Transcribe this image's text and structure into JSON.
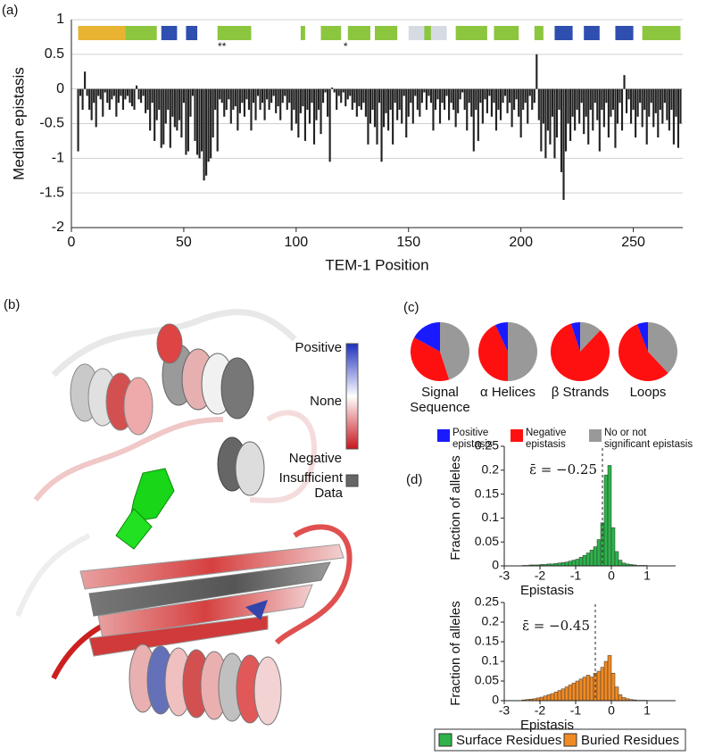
{
  "panels": [
    "(a)",
    "(b)",
    "(c)",
    "(d)"
  ],
  "structure_panel": {
    "colorbar_labels": [
      "Positive",
      "None",
      "Negative"
    ],
    "missing_label": "Insufficient Data"
  },
  "chart_data": [
    {
      "type": "bar",
      "ylabel": "Median epistasis",
      "xlabel": "TEM-1 Position",
      "color": "#222222",
      "grid": true,
      "xlim": [
        0,
        272
      ],
      "ylim": [
        -2,
        1
      ],
      "xticks": [
        0,
        50,
        100,
        150,
        200,
        250
      ],
      "yticks": [
        -2,
        -1.5,
        -1,
        -0.5,
        0,
        0.5,
        1
      ],
      "segments": [
        {
          "start": 3,
          "end": 24,
          "color": "#e8b330"
        },
        {
          "start": 24,
          "end": 38,
          "color": "#8cc63f"
        },
        {
          "start": 40,
          "end": 47,
          "color": "#2e4fb0"
        },
        {
          "start": 51,
          "end": 56,
          "color": "#2e4fb0"
        },
        {
          "start": 65,
          "end": 80,
          "color": "#8cc63f"
        },
        {
          "start": 102,
          "end": 104,
          "color": "#8cc63f"
        },
        {
          "start": 111,
          "end": 120,
          "color": "#8cc63f"
        },
        {
          "start": 123,
          "end": 133,
          "color": "#8cc63f"
        },
        {
          "start": 135,
          "end": 145,
          "color": "#8cc63f"
        },
        {
          "start": 150,
          "end": 158,
          "color": "#d6dbe2"
        },
        {
          "start": 157,
          "end": 160,
          "color": "#8cc63f"
        },
        {
          "start": 160,
          "end": 167,
          "color": "#d6dbe2"
        },
        {
          "start": 171,
          "end": 185,
          "color": "#8cc63f"
        },
        {
          "start": 188,
          "end": 199,
          "color": "#8cc63f"
        },
        {
          "start": 206,
          "end": 210,
          "color": "#8cc63f"
        },
        {
          "start": 215,
          "end": 223,
          "color": "#2e4fb0"
        },
        {
          "start": 228,
          "end": 235,
          "color": "#2e4fb0"
        },
        {
          "start": 242,
          "end": 250,
          "color": "#2e4fb0"
        },
        {
          "start": 254,
          "end": 271,
          "color": "#8cc63f"
        }
      ],
      "stars": [
        {
          "label": "**",
          "x": 67
        },
        {
          "label": "*",
          "x": 122
        }
      ],
      "x": [
        3,
        4,
        5,
        6,
        7,
        8,
        9,
        10,
        11,
        12,
        13,
        14,
        15,
        16,
        17,
        18,
        19,
        20,
        21,
        22,
        23,
        24,
        25,
        26,
        27,
        28,
        29,
        30,
        31,
        32,
        33,
        34,
        35,
        36,
        37,
        38,
        39,
        40,
        41,
        42,
        43,
        44,
        45,
        46,
        47,
        48,
        49,
        50,
        51,
        52,
        53,
        54,
        55,
        56,
        57,
        58,
        59,
        60,
        61,
        62,
        63,
        64,
        65,
        66,
        67,
        68,
        69,
        70,
        71,
        72,
        73,
        74,
        75,
        76,
        77,
        78,
        79,
        80,
        81,
        82,
        83,
        84,
        85,
        86,
        87,
        88,
        89,
        90,
        91,
        92,
        93,
        94,
        95,
        96,
        97,
        98,
        99,
        100,
        101,
        102,
        103,
        104,
        105,
        106,
        107,
        108,
        109,
        110,
        111,
        112,
        113,
        114,
        115,
        116,
        117,
        118,
        119,
        120,
        121,
        122,
        123,
        124,
        125,
        126,
        127,
        128,
        129,
        130,
        131,
        132,
        133,
        134,
        135,
        136,
        137,
        138,
        139,
        140,
        141,
        142,
        143,
        144,
        145,
        146,
        147,
        148,
        149,
        150,
        151,
        152,
        153,
        154,
        155,
        156,
        157,
        158,
        159,
        160,
        161,
        162,
        163,
        164,
        165,
        166,
        167,
        168,
        169,
        170,
        171,
        172,
        173,
        174,
        175,
        176,
        177,
        178,
        179,
        180,
        181,
        182,
        183,
        184,
        185,
        186,
        187,
        188,
        189,
        190,
        191,
        192,
        193,
        194,
        195,
        196,
        197,
        198,
        199,
        200,
        201,
        202,
        203,
        204,
        205,
        206,
        207,
        208,
        209,
        210,
        211,
        212,
        213,
        214,
        215,
        216,
        217,
        218,
        219,
        220,
        221,
        222,
        223,
        224,
        225,
        226,
        227,
        228,
        229,
        230,
        231,
        232,
        233,
        234,
        235,
        236,
        237,
        238,
        239,
        240,
        241,
        242,
        243,
        244,
        245,
        246,
        247,
        248,
        249,
        250,
        251,
        252,
        253,
        254,
        255,
        256,
        257,
        258,
        259,
        260,
        261,
        262,
        263,
        264,
        265,
        266,
        267,
        268,
        269,
        270,
        271
      ],
      "values": [
        -0.9,
        -0.1,
        -0.3,
        0.25,
        -0.1,
        -0.3,
        -0.45,
        -0.2,
        -0.55,
        -0.1,
        -0.15,
        -0.4,
        -0.05,
        -0.2,
        -0.3,
        -0.15,
        -0.1,
        -0.4,
        -0.2,
        -0.1,
        -0.3,
        -0.15,
        -0.1,
        -0.2,
        -0.25,
        -0.3,
        0.05,
        -0.15,
        -0.2,
        -0.1,
        -0.35,
        -0.3,
        -0.6,
        -0.2,
        -0.75,
        -0.45,
        -0.3,
        -0.85,
        -0.8,
        -0.5,
        -0.3,
        -0.85,
        -0.4,
        -0.55,
        -0.6,
        -0.45,
        -0.7,
        -0.2,
        -0.95,
        -0.9,
        -0.4,
        -0.1,
        -0.75,
        -0.95,
        -1.0,
        -0.9,
        -1.32,
        -1.25,
        -1.05,
        -1.0,
        -0.7,
        -0.3,
        -0.9,
        -0.15,
        -0.2,
        -0.4,
        -0.3,
        -0.15,
        -0.5,
        -0.3,
        -0.25,
        -0.6,
        -0.35,
        -0.2,
        -0.4,
        -0.15,
        -0.3,
        -0.6,
        -0.2,
        -0.45,
        -0.1,
        -0.3,
        -0.2,
        -0.45,
        -0.15,
        -0.3,
        -0.2,
        -0.1,
        -0.35,
        -0.25,
        -0.45,
        -0.2,
        -0.1,
        -0.3,
        -0.2,
        -0.6,
        -0.3,
        -0.5,
        -0.7,
        -0.35,
        -0.25,
        -0.75,
        -0.3,
        -0.5,
        -0.2,
        -0.8,
        -0.45,
        -0.3,
        -0.65,
        -0.2,
        -0.05,
        -0.4,
        -1.05,
        0.02,
        -0.05,
        -0.3,
        -0.1,
        -0.2,
        -0.05,
        -0.25,
        -0.15,
        -0.1,
        -0.3,
        -0.2,
        -0.4,
        -0.25,
        -0.3,
        -0.2,
        -0.4,
        -0.8,
        -0.5,
        -0.3,
        -0.55,
        -0.8,
        -0.2,
        -1.05,
        -0.55,
        -0.35,
        -0.6,
        -0.3,
        -0.8,
        -0.2,
        -0.45,
        -0.3,
        -0.5,
        -0.1,
        -0.7,
        -0.4,
        -0.2,
        -0.5,
        -0.1,
        -0.3,
        -0.4,
        -0.2,
        -0.05,
        -0.3,
        -0.1,
        -0.2,
        -0.6,
        -0.3,
        -0.15,
        -0.5,
        -0.2,
        -0.3,
        -0.1,
        -0.45,
        -0.2,
        -0.3,
        -0.55,
        -0.35,
        -0.15,
        -0.05,
        -0.3,
        -0.6,
        -0.2,
        -0.4,
        -0.9,
        -0.3,
        -0.75,
        -0.2,
        -0.5,
        -0.15,
        -0.35,
        -0.1,
        -0.4,
        -0.2,
        -0.6,
        -0.3,
        -0.45,
        -0.2,
        -0.1,
        -0.35,
        -0.2,
        -0.55,
        -0.3,
        -0.15,
        -0.4,
        -0.7,
        -0.3,
        -0.2,
        -0.5,
        -0.1,
        -0.3,
        -0.2,
        0.5,
        -0.45,
        -0.9,
        -0.5,
        -1.0,
        -0.6,
        -0.8,
        -0.4,
        -1.0,
        -0.7,
        -0.3,
        -1.2,
        -1.6,
        -0.9,
        -0.5,
        -0.75,
        -0.4,
        -0.6,
        -0.3,
        -0.5,
        -0.2,
        -0.65,
        -0.4,
        -0.8,
        -0.3,
        -0.6,
        -0.2,
        -0.45,
        -0.9,
        -0.3,
        -0.55,
        -0.2,
        -0.7,
        -0.4,
        -0.3,
        -0.85,
        -0.5,
        -0.2,
        -0.6,
        0.2,
        -0.35,
        -0.15,
        -0.5,
        -0.3,
        -0.7,
        -0.4,
        -0.2,
        -0.55,
        -0.3,
        -0.8,
        -0.4,
        -0.2,
        -0.55,
        -0.35,
        -0.7,
        -0.3,
        -0.5,
        -0.2,
        -0.45,
        -0.6,
        -0.3,
        -0.8,
        -0.4,
        -0.85,
        -0.5
      ]
    },
    {
      "type": "pie",
      "categories": [
        "Signal Sequence",
        "α Helices",
        "β Strands",
        "Loops"
      ],
      "series": [
        {
          "name": "Positive epistasis",
          "color": "#1a1aff",
          "values": [
            17,
            7,
            5,
            6
          ]
        },
        {
          "name": "Negative epistasis",
          "color": "#ff1010",
          "values": [
            38,
            43,
            83,
            56
          ]
        },
        {
          "name": "No or not significant epistasis",
          "color": "#999999",
          "values": [
            45,
            50,
            12,
            38
          ]
        }
      ]
    },
    {
      "type": "histogram",
      "name": "Surface Residues",
      "color": "#2db34a",
      "xlabel": "Epistasis",
      "ylabel": "Fraction of alleles",
      "mean": -0.25,
      "mean_label": "ε̄ = −0.25",
      "xlim": [
        -3,
        1.8
      ],
      "ylim": [
        0,
        0.25
      ],
      "xticks": [
        -3,
        -2,
        -1,
        0,
        1
      ],
      "yticks": [
        0,
        0.05,
        0.1,
        0.15,
        0.2,
        0.25
      ],
      "bins": [
        -2.5,
        -2.4,
        -2.3,
        -2.2,
        -2.1,
        -2.0,
        -1.9,
        -1.8,
        -1.7,
        -1.6,
        -1.5,
        -1.4,
        -1.3,
        -1.2,
        -1.1,
        -1.0,
        -0.9,
        -0.8,
        -0.7,
        -0.6,
        -0.5,
        -0.4,
        -0.3,
        -0.2,
        -0.1,
        0.0,
        0.1,
        0.2,
        0.3,
        0.4,
        0.5,
        0.6,
        0.7,
        0.8,
        0.9,
        1.0
      ],
      "counts": [
        0.001,
        0.001,
        0.002,
        0.002,
        0.002,
        0.003,
        0.003,
        0.004,
        0.004,
        0.005,
        0.006,
        0.007,
        0.008,
        0.01,
        0.012,
        0.014,
        0.018,
        0.022,
        0.027,
        0.033,
        0.04,
        0.055,
        0.09,
        0.19,
        0.21,
        0.08,
        0.03,
        0.012,
        0.006,
        0.004,
        0.003,
        0.002,
        0.001,
        0.001,
        0.001
      ]
    },
    {
      "type": "histogram",
      "name": "Buried Residues",
      "color": "#f08a24",
      "xlabel": "Epistasis",
      "ylabel": "Fraction of alleles",
      "mean": -0.45,
      "mean_label": "ε̄ = −0.45",
      "xlim": [
        -3,
        1.8
      ],
      "ylim": [
        0,
        0.25
      ],
      "xticks": [
        -3,
        -2,
        -1,
        0,
        1
      ],
      "yticks": [
        0,
        0.05,
        0.1,
        0.15,
        0.2,
        0.25
      ],
      "bins": [
        -2.5,
        -2.4,
        -2.3,
        -2.2,
        -2.1,
        -2.0,
        -1.9,
        -1.8,
        -1.7,
        -1.6,
        -1.5,
        -1.4,
        -1.3,
        -1.2,
        -1.1,
        -1.0,
        -0.9,
        -0.8,
        -0.7,
        -0.6,
        -0.5,
        -0.4,
        -0.3,
        -0.2,
        -0.1,
        0.0,
        0.1,
        0.2,
        0.3,
        0.4,
        0.5,
        0.6,
        0.7,
        0.8,
        0.9,
        1.0
      ],
      "counts": [
        0.002,
        0.003,
        0.004,
        0.005,
        0.007,
        0.009,
        0.012,
        0.015,
        0.018,
        0.022,
        0.026,
        0.03,
        0.035,
        0.04,
        0.045,
        0.05,
        0.055,
        0.06,
        0.065,
        0.06,
        0.07,
        0.075,
        0.085,
        0.1,
        0.115,
        0.07,
        0.035,
        0.015,
        0.008,
        0.005,
        0.003,
        0.002,
        0.001,
        0.001,
        0.001
      ]
    }
  ]
}
